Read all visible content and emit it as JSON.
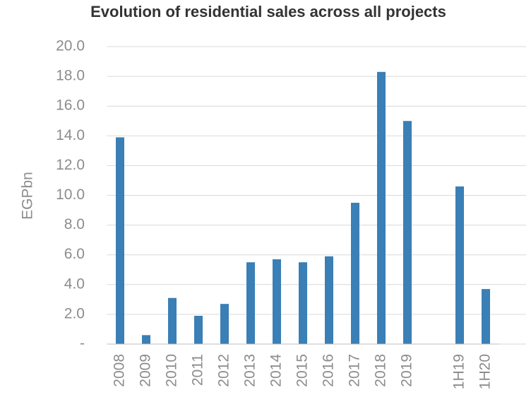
{
  "chart_data": {
    "type": "bar",
    "title": "Evolution of residential sales across all projects",
    "y_label": "EGPbn",
    "categories": [
      "2008",
      "2009",
      "2010",
      "2011",
      "2012",
      "2013",
      "2014",
      "2015",
      "2016",
      "2017",
      "2018",
      "2019",
      null,
      "1H19",
      "1H20"
    ],
    "values": [
      13.9,
      0.6,
      3.1,
      1.9,
      2.7,
      5.5,
      5.7,
      5.5,
      5.9,
      9.5,
      18.3,
      15.0,
      null,
      10.6,
      3.7
    ],
    "color": "#3a7fb5",
    "ylim": [
      0,
      20
    ],
    "yticks": [
      {
        "value": 0,
        "label": "-"
      },
      {
        "value": 2,
        "label": "2.0"
      },
      {
        "value": 4,
        "label": "4.0"
      },
      {
        "value": 6,
        "label": "6.0"
      },
      {
        "value": 8,
        "label": "8.0"
      },
      {
        "value": 10,
        "label": "10.0"
      },
      {
        "value": 12,
        "label": "12.0"
      },
      {
        "value": 14,
        "label": "14.0"
      },
      {
        "value": 16,
        "label": "16.0"
      },
      {
        "value": 18,
        "label": "18.0"
      },
      {
        "value": 20,
        "label": "20.0"
      }
    ],
    "grid": true
  }
}
